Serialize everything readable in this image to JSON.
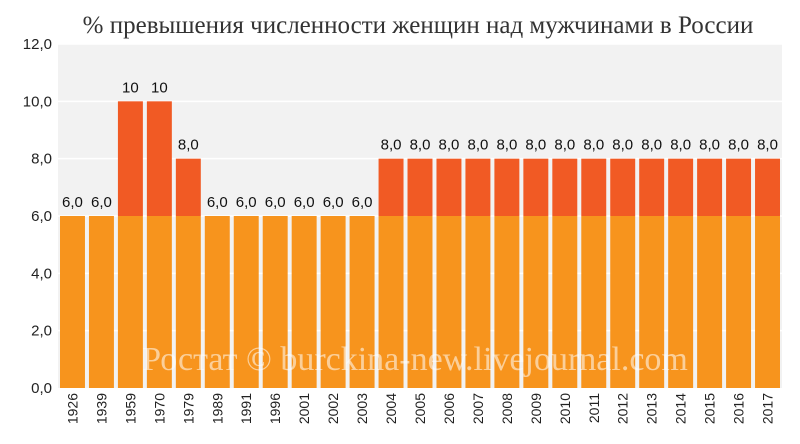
{
  "chart_data": {
    "type": "bar",
    "stacked": true,
    "title": "% превышения численности женщин над мужчинами в России",
    "watermark": "Ростат © burckina-new.livejournal.com",
    "categories": [
      "1926",
      "1939",
      "1959",
      "1970",
      "1979",
      "1989",
      "1991",
      "1996",
      "2001",
      "2002",
      "2003",
      "2004",
      "2005",
      "2006",
      "2007",
      "2008",
      "2009",
      "2010",
      "2011",
      "2012",
      "2013",
      "2014",
      "2015",
      "2016",
      "2017"
    ],
    "series": [
      {
        "values": [
          6,
          6,
          6,
          6,
          6,
          6,
          6,
          6,
          6,
          6,
          6,
          6,
          6,
          6,
          6,
          6,
          6,
          6,
          6,
          6,
          6,
          6,
          6,
          6,
          6
        ],
        "color": "#f7941d"
      },
      {
        "values": [
          0,
          0,
          4,
          4,
          2,
          0,
          0,
          0,
          0,
          0,
          0,
          2,
          2,
          2,
          2,
          2,
          2,
          2,
          2,
          2,
          2,
          2,
          2,
          2,
          2
        ],
        "color": "#f15a24"
      }
    ],
    "data_labels": [
      "6,0",
      "6,0",
      "10",
      "10",
      "8,0",
      "6,0",
      "6,0",
      "6,0",
      "6,0",
      "6,0",
      "6,0",
      "8,0",
      "8,0",
      "8,0",
      "8,0",
      "8,0",
      "8,0",
      "8,0",
      "8,0",
      "8,0",
      "8,0",
      "8,0",
      "8,0",
      "8,0",
      "8,0"
    ],
    "yticks": [
      "0,0",
      "2,0",
      "4,0",
      "6,0",
      "8,0",
      "10,0",
      "12,0"
    ],
    "ylim": [
      0,
      12
    ],
    "grid": true,
    "plot_background": "#f2f2f2",
    "grid_color": "#ffffff"
  }
}
